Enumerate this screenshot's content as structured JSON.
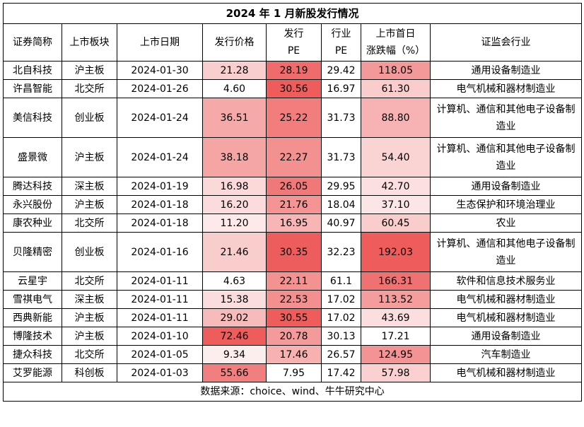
{
  "title": "2024 年 1 月新股发行情况",
  "headers": [
    "证券简称",
    "上市板块",
    "上市日期",
    "发行价格",
    "发行\nPE",
    "行业\nPE",
    "上市首日\n涨跌幅（%）",
    "证监会行业"
  ],
  "rows": [
    {
      "name": "北自科技",
      "board": "沪主板",
      "date": "2024-01-30",
      "price": "21.28",
      "issue_pe": "28.19",
      "ind_pe": "29.42",
      "change": "118.05",
      "industry": "通用设备制造业"
    },
    {
      "name": "许昌智能",
      "board": "北交所",
      "date": "2024-01-26",
      "price": "4.60",
      "issue_pe": "30.56",
      "ind_pe": "16.97",
      "change": "61.30",
      "industry": "电气机械和器材制造业"
    },
    {
      "name": "美信科技",
      "board": "创业板",
      "date": "2024-01-24",
      "price": "36.51",
      "issue_pe": "25.22",
      "ind_pe": "31.73",
      "change": "88.80",
      "industry": "计算机、通信和其他电子设备制造业"
    },
    {
      "name": "盛景微",
      "board": "沪主板",
      "date": "2024-01-24",
      "price": "38.18",
      "issue_pe": "22.27",
      "ind_pe": "31.73",
      "change": "54.40",
      "industry": "计算机、通信和其他电子设备制造业"
    },
    {
      "name": "腾达科技",
      "board": "深主板",
      "date": "2024-01-19",
      "price": "16.98",
      "issue_pe": "26.05",
      "ind_pe": "29.95",
      "change": "42.70",
      "industry": "通用设备制造业"
    },
    {
      "name": "永兴股份",
      "board": "沪主板",
      "date": "2024-01-18",
      "price": "16.20",
      "issue_pe": "21.76",
      "ind_pe": "18.04",
      "change": "37.10",
      "industry": "生态保护和环境治理业"
    },
    {
      "name": "康农种业",
      "board": "北交所",
      "date": "2024-01-18",
      "price": "11.20",
      "issue_pe": "16.95",
      "ind_pe": "40.97",
      "change": "60.45",
      "industry": "农业"
    },
    {
      "name": "贝隆精密",
      "board": "创业板",
      "date": "2024-01-16",
      "price": "21.46",
      "issue_pe": "30.35",
      "ind_pe": "32.23",
      "change": "192.03",
      "industry": "计算机、通信和其他电子设备制造业"
    },
    {
      "name": "云星宇",
      "board": "北交所",
      "date": "2024-01-11",
      "price": "4.63",
      "issue_pe": "22.11",
      "ind_pe": "61.1",
      "change": "166.31",
      "industry": "软件和信息技术服务业"
    },
    {
      "name": "雪祺电气",
      "board": "深主板",
      "date": "2024-01-11",
      "price": "15.38",
      "issue_pe": "22.53",
      "ind_pe": "17.02",
      "change": "113.52",
      "industry": "电气机械和器材制造业"
    },
    {
      "name": "西典新能",
      "board": "沪主板",
      "date": "2024-01-11",
      "price": "29.02",
      "issue_pe": "30.55",
      "ind_pe": "17.02",
      "change": "43.69",
      "industry": "电气机械和器材制造业"
    },
    {
      "name": "博隆技术",
      "board": "沪主板",
      "date": "2024-01-10",
      "price": "72.46",
      "issue_pe": "20.78",
      "ind_pe": "30.13",
      "change": "17.21",
      "industry": "通用设备制造业"
    },
    {
      "name": "捷众科技",
      "board": "北交所",
      "date": "2024-01-05",
      "price": "9.34",
      "issue_pe": "17.46",
      "ind_pe": "26.57",
      "change": "124.95",
      "industry": "汽车制造业"
    },
    {
      "name": "艾罗能源",
      "board": "科创板",
      "date": "2024-01-03",
      "price": "55.66",
      "issue_pe": "7.95",
      "ind_pe": "17.42",
      "change": "57.98",
      "industry": "电气机械和器材制造业"
    }
  ],
  "source": "数据来源：choice、wind、牛牛研究中心",
  "colors": {
    "heat_max": "#ee5c5c",
    "heat_min": "#ffffff",
    "border": "#000000"
  }
}
